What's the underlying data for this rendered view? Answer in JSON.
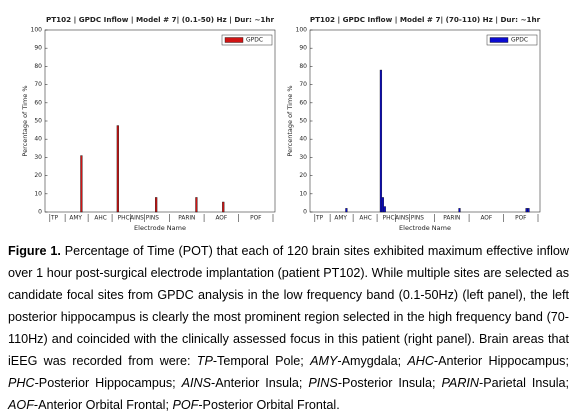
{
  "chart_data": [
    {
      "type": "bar",
      "title": "PT102 | GPDC Inflow | Model # 7| (0.1-50) Hz  | Dur: ~1hr",
      "ylabel": "Percentage of Time %",
      "xlabel": "Electrode Name",
      "xlim": [
        0,
        120
      ],
      "ylim": [
        0,
        100
      ],
      "yticks": [
        0,
        10,
        20,
        30,
        40,
        50,
        60,
        70,
        80,
        90,
        100
      ],
      "xticks": [
        {
          "value": 5,
          "label": "TP"
        },
        {
          "value": 16,
          "label": "AMY"
        },
        {
          "value": 29,
          "label": "AHC"
        },
        {
          "value": 41,
          "label": "PHC"
        },
        {
          "value": 48,
          "label": "AINS"
        },
        {
          "value": 56,
          "label": "PINS"
        },
        {
          "value": 74,
          "label": "PARIN"
        },
        {
          "value": 92,
          "label": "AOF"
        },
        {
          "value": 110,
          "label": "POF"
        }
      ],
      "legend": "upper right",
      "series": [
        {
          "name": "GPDC",
          "color": "#d01414",
          "x": [
            19,
            38,
            58,
            79,
            93
          ],
          "values": [
            31,
            47.5,
            8,
            8,
            5.5
          ]
        }
      ]
    },
    {
      "type": "bar",
      "title": "PT102 | GPDC Inflow | Model # 7| (70-110) Hz  | Dur: ~1hr",
      "ylabel": "Percentage of Time %",
      "xlabel": "Electrode Name",
      "xlim": [
        0,
        120
      ],
      "ylim": [
        0,
        100
      ],
      "yticks": [
        0,
        10,
        20,
        30,
        40,
        50,
        60,
        70,
        80,
        90,
        100
      ],
      "xticks": [
        {
          "value": 5,
          "label": "TP"
        },
        {
          "value": 16,
          "label": "AMY"
        },
        {
          "value": 29,
          "label": "AHC"
        },
        {
          "value": 41,
          "label": "PHC"
        },
        {
          "value": 48,
          "label": "AINS"
        },
        {
          "value": 56,
          "label": "PINS"
        },
        {
          "value": 74,
          "label": "PARIN"
        },
        {
          "value": 92,
          "label": "AOF"
        },
        {
          "value": 110,
          "label": "POF"
        }
      ],
      "legend": "upper right",
      "series": [
        {
          "name": "GPDC",
          "color": "#0a0ad0",
          "x": [
            19,
            37,
            38,
            39,
            78,
            113,
            114
          ],
          "values": [
            2,
            78,
            8,
            3,
            2,
            2,
            2
          ]
        }
      ]
    }
  ],
  "caption": {
    "label": "Figure 1.",
    "segments": [
      {
        "text": " Percentage of Time (POT) that each of 120 brain sites exhibited maximum effective inflow over 1 hour post-surgical electrode implantation (patient PT102). While multiple sites are selected as candidate focal sites from GPDC analysis in the low frequency band (0.1-50Hz) (left panel), the left posterior hippocampus is clearly the most prominent region selected in the high frequency band (70-110Hz) and coincided with the clinically assessed focus in this patient (right panel). Brain areas that iEEG was recorded from were: ",
        "italic": false
      },
      {
        "text": "TP",
        "italic": true
      },
      {
        "text": "-Temporal Pole; ",
        "italic": false
      },
      {
        "text": "AMY",
        "italic": true
      },
      {
        "text": "-Amygdala; ",
        "italic": false
      },
      {
        "text": "AHC",
        "italic": true
      },
      {
        "text": "-Anterior Hippocampus; ",
        "italic": false
      },
      {
        "text": "PHC",
        "italic": true
      },
      {
        "text": "-Posterior Hippocampus; ",
        "italic": false
      },
      {
        "text": "AINS",
        "italic": true
      },
      {
        "text": "-Anterior Insula; ",
        "italic": false
      },
      {
        "text": "PINS",
        "italic": true
      },
      {
        "text": "-Posterior Insula; ",
        "italic": false
      },
      {
        "text": "PARIN",
        "italic": true
      },
      {
        "text": "-Parietal Insula; ",
        "italic": false
      },
      {
        "text": "AOF",
        "italic": true
      },
      {
        "text": "-Anterior Orbital Frontal; ",
        "italic": false
      },
      {
        "text": "POF",
        "italic": true
      },
      {
        "text": "-Posterior Orbital Frontal.",
        "italic": false
      }
    ]
  }
}
